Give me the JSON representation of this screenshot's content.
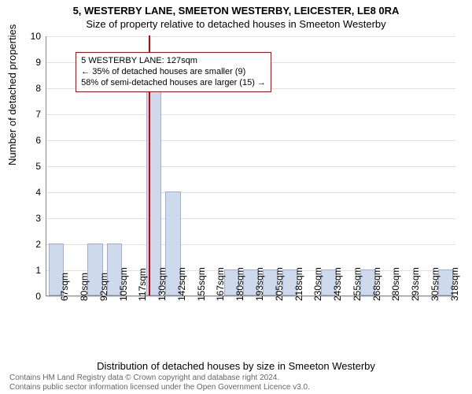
{
  "title": "5, WESTERBY LANE, SMEETON WESTERBY, LEICESTER, LE8 0RA",
  "subtitle": "Size of property relative to detached houses in Smeeton Westerby",
  "chart": {
    "type": "bar",
    "y_label": "Number of detached properties",
    "x_label": "Distribution of detached houses by size in Smeeton Westerby",
    "y_min": 0,
    "y_max": 10,
    "y_ticks": [
      0,
      1,
      2,
      3,
      4,
      5,
      6,
      7,
      8,
      9,
      10
    ],
    "x_ticks": [
      "67sqm",
      "80sqm",
      "92sqm",
      "105sqm",
      "117sqm",
      "130sqm",
      "142sqm",
      "155sqm",
      "167sqm",
      "180sqm",
      "193sqm",
      "205sqm",
      "218sqm",
      "230sqm",
      "243sqm",
      "255sqm",
      "268sqm",
      "280sqm",
      "293sqm",
      "305sqm",
      "318sqm"
    ],
    "bars": [
      2,
      0,
      2,
      2,
      0,
      8,
      4,
      0,
      0,
      1,
      1,
      1,
      1,
      0,
      1,
      0,
      1,
      0,
      0,
      0,
      1
    ],
    "bar_color": "#cfd9ec",
    "bar_border": "#9bb0d6",
    "bar_width": 0.78,
    "background_color": "#ffffff",
    "grid_color": "#e0e0e0",
    "marker": {
      "position_index": 4.8,
      "color": "#cc0000",
      "height_value": 10
    },
    "annotation": {
      "lines": [
        "5 WESTERBY LANE: 127sqm",
        "← 35% of detached houses are smaller (9)",
        "58% of semi-detached houses are larger (15) →"
      ],
      "border_color": "#cc0000",
      "text_color": "#000000",
      "top_value": 9.4,
      "left_index": 1.5
    }
  },
  "footer_line1": "Contains HM Land Registry data © Crown copyright and database right 2024.",
  "footer_line2": "Contains public sector information licensed under the Open Government Licence v3.0."
}
